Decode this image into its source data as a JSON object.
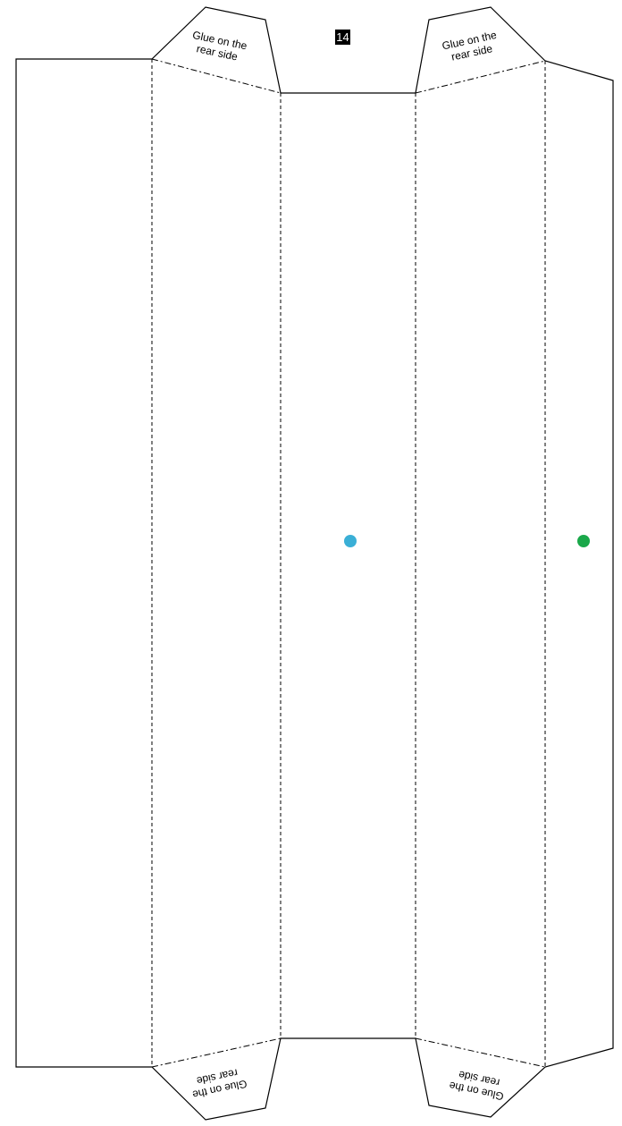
{
  "page_number": "14",
  "glue_tabs": [
    {
      "line1": "Glue on the",
      "line2": "rear side"
    },
    {
      "line1": "Glue on the",
      "line2": "rear side"
    },
    {
      "line1": "Glue on the",
      "line2": "rear side"
    },
    {
      "line1": "Glue on the",
      "line2": "rear side"
    }
  ],
  "markers": [
    {
      "name": "blue-dot",
      "color": "#3aafd6"
    },
    {
      "name": "green-dot",
      "color": "#1aa84a"
    }
  ],
  "line_styles": {
    "cut": "solid",
    "fold": "dashed",
    "tab_fold": "dash-dot"
  }
}
